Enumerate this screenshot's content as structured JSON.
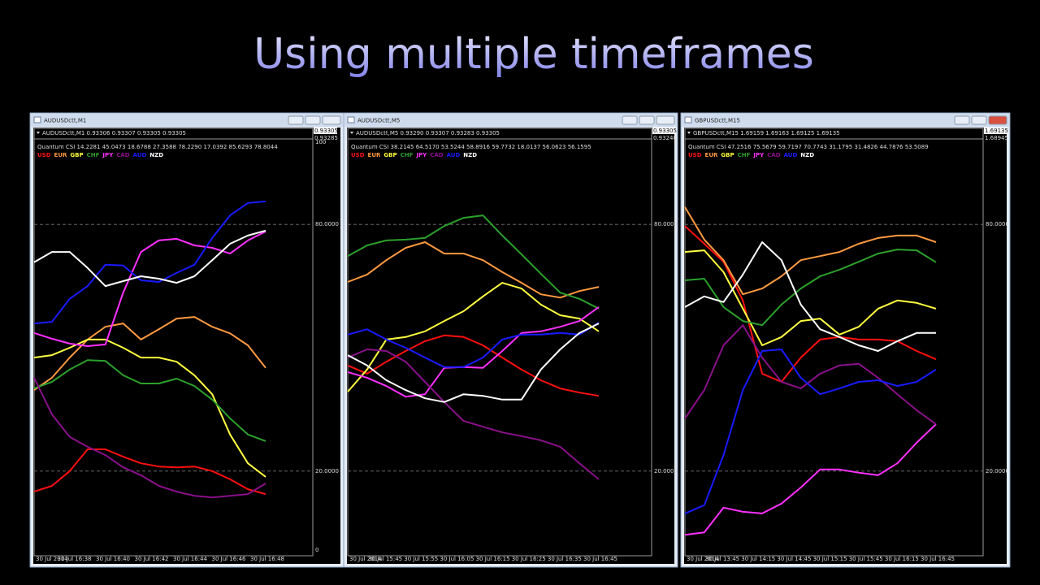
{
  "slide_title": "Using multiple timeframes",
  "windows": [
    {
      "title": "AUDUSDctt,M1",
      "header": "AUDUSDctt,M1  0.93306 0.93307 0.93305 0.93305",
      "indicator": "Quantum CSI 14.2281 45.0473 18.6788 27.3588 78.2290 17.0392 85.6293 78.8044",
      "price_labels": [
        "0.93305",
        "0.93285"
      ],
      "chart": {
        "type": "line",
        "x_labels": [
          "30 Jul 2014",
          "30 Jul 16:38",
          "30 Jul 16:40",
          "30 Jul 16:42",
          "30 Jul 16:44",
          "30 Jul 16:46",
          "30 Jul 16:48"
        ],
        "ylim": [
          0,
          100
        ],
        "yticks": [
          100,
          {
            "value": 80,
            "label": "80.0000"
          },
          {
            "value": 20,
            "label": "20.0000"
          },
          0
        ],
        "series": [
          {
            "name": "USD",
            "color": "#ff1010",
            "values": [
              15,
              16.4,
              20,
              25.3,
              25.3,
              23.5,
              21.9,
              21.1,
              20.9,
              21.1,
              20,
              18,
              15.6,
              14.4
            ]
          },
          {
            "name": "EUR",
            "color": "#ff9a40",
            "values": [
              39.7,
              42.7,
              47.6,
              52,
              55.1,
              55.9,
              52,
              54.5,
              57.1,
              57.5,
              55.1,
              53.5,
              50.6,
              45.1
            ]
          },
          {
            "name": "GBP",
            "color": "#ffff40",
            "values": [
              47.6,
              48.2,
              50,
              52,
              52,
              50,
              47.6,
              47.6,
              46.6,
              43.3,
              38.7,
              28.9,
              21.9,
              18.6
            ]
          },
          {
            "name": "CHF",
            "color": "#2ca02c",
            "values": [
              40.1,
              41.7,
              44.7,
              47,
              46.8,
              43.3,
              41.3,
              41.3,
              42.5,
              40.7,
              37.4,
              32.8,
              28.9,
              27.3
            ]
          },
          {
            "name": "JPY",
            "color": "#ff30ff",
            "values": [
              53.6,
              52.2,
              51,
              50.4,
              50.8,
              63.4,
              73.3,
              76.1,
              76.5,
              74.9,
              74.3,
              72.9,
              76.1,
              78.3
            ]
          },
          {
            "name": "CAD",
            "color": "#8a108a",
            "values": [
              42.7,
              33.8,
              28.3,
              25.9,
              23.9,
              20.9,
              19,
              16.4,
              15,
              14,
              13.6,
              14,
              14.4,
              17
            ]
          },
          {
            "name": "AUD",
            "color": "#1a1aff",
            "values": [
              55.9,
              56.3,
              61.9,
              65,
              70.2,
              70,
              66.4,
              66,
              68.2,
              70.2,
              76.7,
              82.2,
              85.2,
              85.6
            ]
          },
          {
            "name": "NZD",
            "color": "#ffffff",
            "values": [
              70.8,
              73.3,
              73.3,
              69.4,
              65,
              66.2,
              67.4,
              66.8,
              65.8,
              67.4,
              71.3,
              75.3,
              77.3,
              78.5
            ]
          }
        ]
      }
    },
    {
      "title": "AUDUSDctt,M5",
      "header": "AUDUSDctt,M5  0.93290 0.93307 0.93283 0.93305",
      "indicator": "Quantum CSI 38.2145 64.5170 53.5244 58.8916 59.7732 18.0137 56.0623 56.1595",
      "price_labels": [
        "0.93305",
        "0.93240"
      ],
      "chart": {
        "type": "line",
        "x_labels": [
          "30 Jul 2014",
          "30 Jul 15:45",
          "30 Jul 15:55",
          "30 Jul 16:05",
          "30 Jul 16:15",
          "30 Jul 16:25",
          "30 Jul 16:35",
          "30 Jul 16:45"
        ],
        "ylim": [
          0,
          100
        ],
        "yticks": [
          {
            "value": 80,
            "label": "80.0000"
          },
          {
            "value": 20,
            "label": "20.0000"
          }
        ],
        "series": [
          {
            "name": "USD",
            "color": "#ff1010",
            "values": [
              45.7,
              43.7,
              46.6,
              49.2,
              51.6,
              53,
              52.6,
              50.6,
              47.6,
              44.7,
              42.1,
              40.1,
              39.1,
              38.3
            ]
          },
          {
            "name": "EUR",
            "color": "#ff9a40",
            "values": [
              66,
              67.8,
              71.3,
              74.3,
              75.7,
              72.9,
              72.9,
              71.3,
              68.4,
              65.8,
              63,
              62.2,
              63.8,
              64.8
            ]
          },
          {
            "name": "GBP",
            "color": "#ffff40",
            "values": [
              39.3,
              44.7,
              52,
              52.6,
              54,
              56.5,
              58.9,
              62.5,
              65.8,
              64.4,
              60.5,
              57.9,
              57.1,
              54
            ]
          },
          {
            "name": "CHF",
            "color": "#2ca02c",
            "values": [
              72.3,
              74.9,
              76.1,
              76.3,
              76.7,
              79.6,
              81.6,
              82.2,
              77.3,
              72.7,
              68,
              63.4,
              61.9,
              59.5
            ]
          },
          {
            "name": "JPY",
            "color": "#ff30ff",
            "values": [
              44.1,
              42.7,
              40.7,
              38.1,
              38.7,
              45.1,
              45.3,
              45.1,
              49.2,
              53.6,
              54,
              55.1,
              56.5,
              59.9
            ]
          },
          {
            "name": "CAD",
            "color": "#8a108a",
            "values": [
              47.6,
              49.6,
              49.2,
              46.6,
              41.7,
              36.8,
              32.2,
              30.8,
              29.4,
              28.5,
              27.5,
              25.9,
              21.9,
              18
            ]
          },
          {
            "name": "AUD",
            "color": "#1a1aff",
            "values": [
              53.2,
              54.5,
              52,
              50,
              47.6,
              45.3,
              45.3,
              47.6,
              52,
              53.2,
              53.2,
              53.6,
              53.2,
              56.1
            ]
          },
          {
            "name": "NZD",
            "color": "#ffffff",
            "values": [
              48.2,
              45.7,
              42.1,
              39.7,
              37.7,
              36.8,
              38.7,
              38.3,
              37.4,
              37.4,
              44.7,
              49.6,
              53.6,
              55.9
            ]
          }
        ]
      }
    },
    {
      "title": "GBPUSDctt,M15",
      "header": "GBPUSDctt,M15  1.69159 1.69163 1.69125 1.69135",
      "indicator": "Quantum CSI 47.2516 75.5679 59.7197 70.7743 31.1795 31.4826 44.7876 53.5089",
      "price_labels": [
        "1.69135",
        "1.68945"
      ],
      "chart": {
        "type": "line",
        "x_labels": [
          "30 Jul 2014",
          "30 Jul 13:45",
          "30 Jul 14:15",
          "30 Jul 14:45",
          "30 Jul 15:15",
          "30 Jul 15:45",
          "30 Jul 16:15",
          "30 Jul 16:45"
        ],
        "ylim": [
          0,
          100
        ],
        "yticks": [
          {
            "value": 80,
            "label": "80.0000"
          },
          {
            "value": 20,
            "label": "20.0000"
          }
        ],
        "series": [
          {
            "name": "USD",
            "color": "#ff1010",
            "values": [
              79.6,
              75.3,
              70.9,
              61.5,
              43.7,
              41.7,
              47.6,
              52,
              52.6,
              52,
              52,
              51.6,
              49.2,
              47.2
            ]
          },
          {
            "name": "EUR",
            "color": "#ff9a40",
            "values": [
              84.2,
              76.3,
              71.3,
              63,
              64.4,
              67.4,
              71.3,
              72.3,
              73.3,
              75.3,
              76.7,
              77.3,
              77.3,
              75.7
            ]
          },
          {
            "name": "GBP",
            "color": "#ffff40",
            "values": [
              73.3,
              73.7,
              68.4,
              59.5,
              50.6,
              52.6,
              56.5,
              57.1,
              53.2,
              55.1,
              59.5,
              61.5,
              60.9,
              59.5
            ]
          },
          {
            "name": "CHF",
            "color": "#2ca02c",
            "values": [
              66.4,
              66.8,
              59.9,
              56.5,
              55.5,
              60.5,
              64.4,
              67.4,
              69,
              70.9,
              72.9,
              73.9,
              73.7,
              70.8
            ]
          },
          {
            "name": "JPY",
            "color": "#ff30ff",
            "values": [
              4.5,
              5.1,
              11.1,
              10.1,
              9.7,
              12.1,
              16,
              20.4,
              20.4,
              19.6,
              19,
              21.9,
              26.9,
              31.4
            ]
          },
          {
            "name": "CAD",
            "color": "#8a108a",
            "values": [
              32.8,
              39.7,
              50.6,
              55.5,
              47.6,
              41.7,
              40.1,
              43.7,
              45.7,
              46.1,
              42.7,
              38.7,
              34.8,
              31.4
            ]
          },
          {
            "name": "AUD",
            "color": "#1a1aff",
            "values": [
              9.7,
              11.7,
              23.9,
              39.7,
              49.2,
              49.6,
              42.7,
              38.7,
              40.1,
              41.7,
              42.1,
              40.7,
              41.7,
              44.7
            ]
          },
          {
            "name": "NZD",
            "color": "#ffffff",
            "values": [
              59.9,
              62.5,
              61.1,
              67.8,
              75.7,
              71.3,
              60.5,
              54.5,
              52.6,
              50.6,
              49.2,
              51.6,
              53.6,
              53.6
            ]
          }
        ]
      }
    }
  ]
}
